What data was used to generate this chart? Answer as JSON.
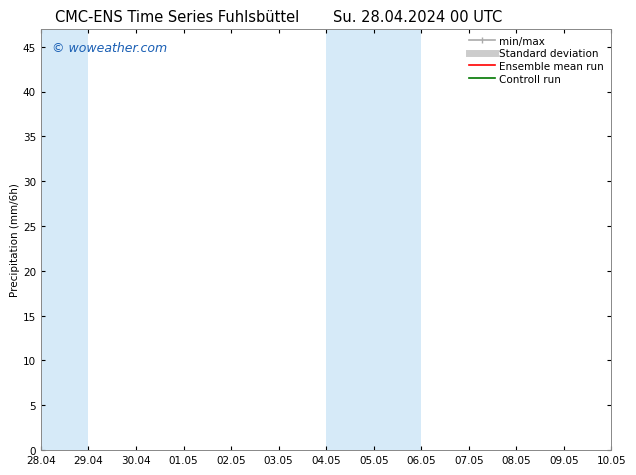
{
  "title_left": "CMC-ENS Time Series Fuhlsbüttel",
  "title_right": "Su. 28.04.2024 00 UTC",
  "ylabel": "Precipitation (mm/6h)",
  "ylim": [
    0,
    47
  ],
  "yticks": [
    0,
    5,
    10,
    15,
    20,
    25,
    30,
    35,
    40,
    45
  ],
  "xlim_start": 0,
  "xlim_end": 12,
  "xtick_labels": [
    "28.04",
    "29.04",
    "30.04",
    "01.05",
    "02.05",
    "03.05",
    "04.05",
    "05.05",
    "06.05",
    "07.05",
    "08.05",
    "09.05",
    "10.05"
  ],
  "xtick_positions": [
    0,
    1,
    2,
    3,
    4,
    5,
    6,
    7,
    8,
    9,
    10,
    11,
    12
  ],
  "shade_regions": [
    {
      "xmin": 0,
      "xmax": 1,
      "color": "#d6eaf8"
    },
    {
      "xmin": 6,
      "xmax": 8,
      "color": "#d6eaf8"
    }
  ],
  "watermark": "© woweather.com",
  "watermark_color": "#1a5fb4",
  "background_color": "#ffffff",
  "plot_bg_color": "#ffffff",
  "legend_items": [
    {
      "label": "min/max",
      "color": "#aaaaaa",
      "lw": 1.2,
      "linestyle": "-"
    },
    {
      "label": "Standard deviation",
      "color": "#cccccc",
      "lw": 5,
      "linestyle": "-"
    },
    {
      "label": "Ensemble mean run",
      "color": "#ff0000",
      "lw": 1.2,
      "linestyle": "-"
    },
    {
      "label": "Controll run",
      "color": "#007700",
      "lw": 1.2,
      "linestyle": "-"
    }
  ],
  "title_fontsize": 10.5,
  "ylabel_fontsize": 7.5,
  "tick_fontsize": 7.5,
  "legend_fontsize": 7.5,
  "watermark_fontsize": 9
}
